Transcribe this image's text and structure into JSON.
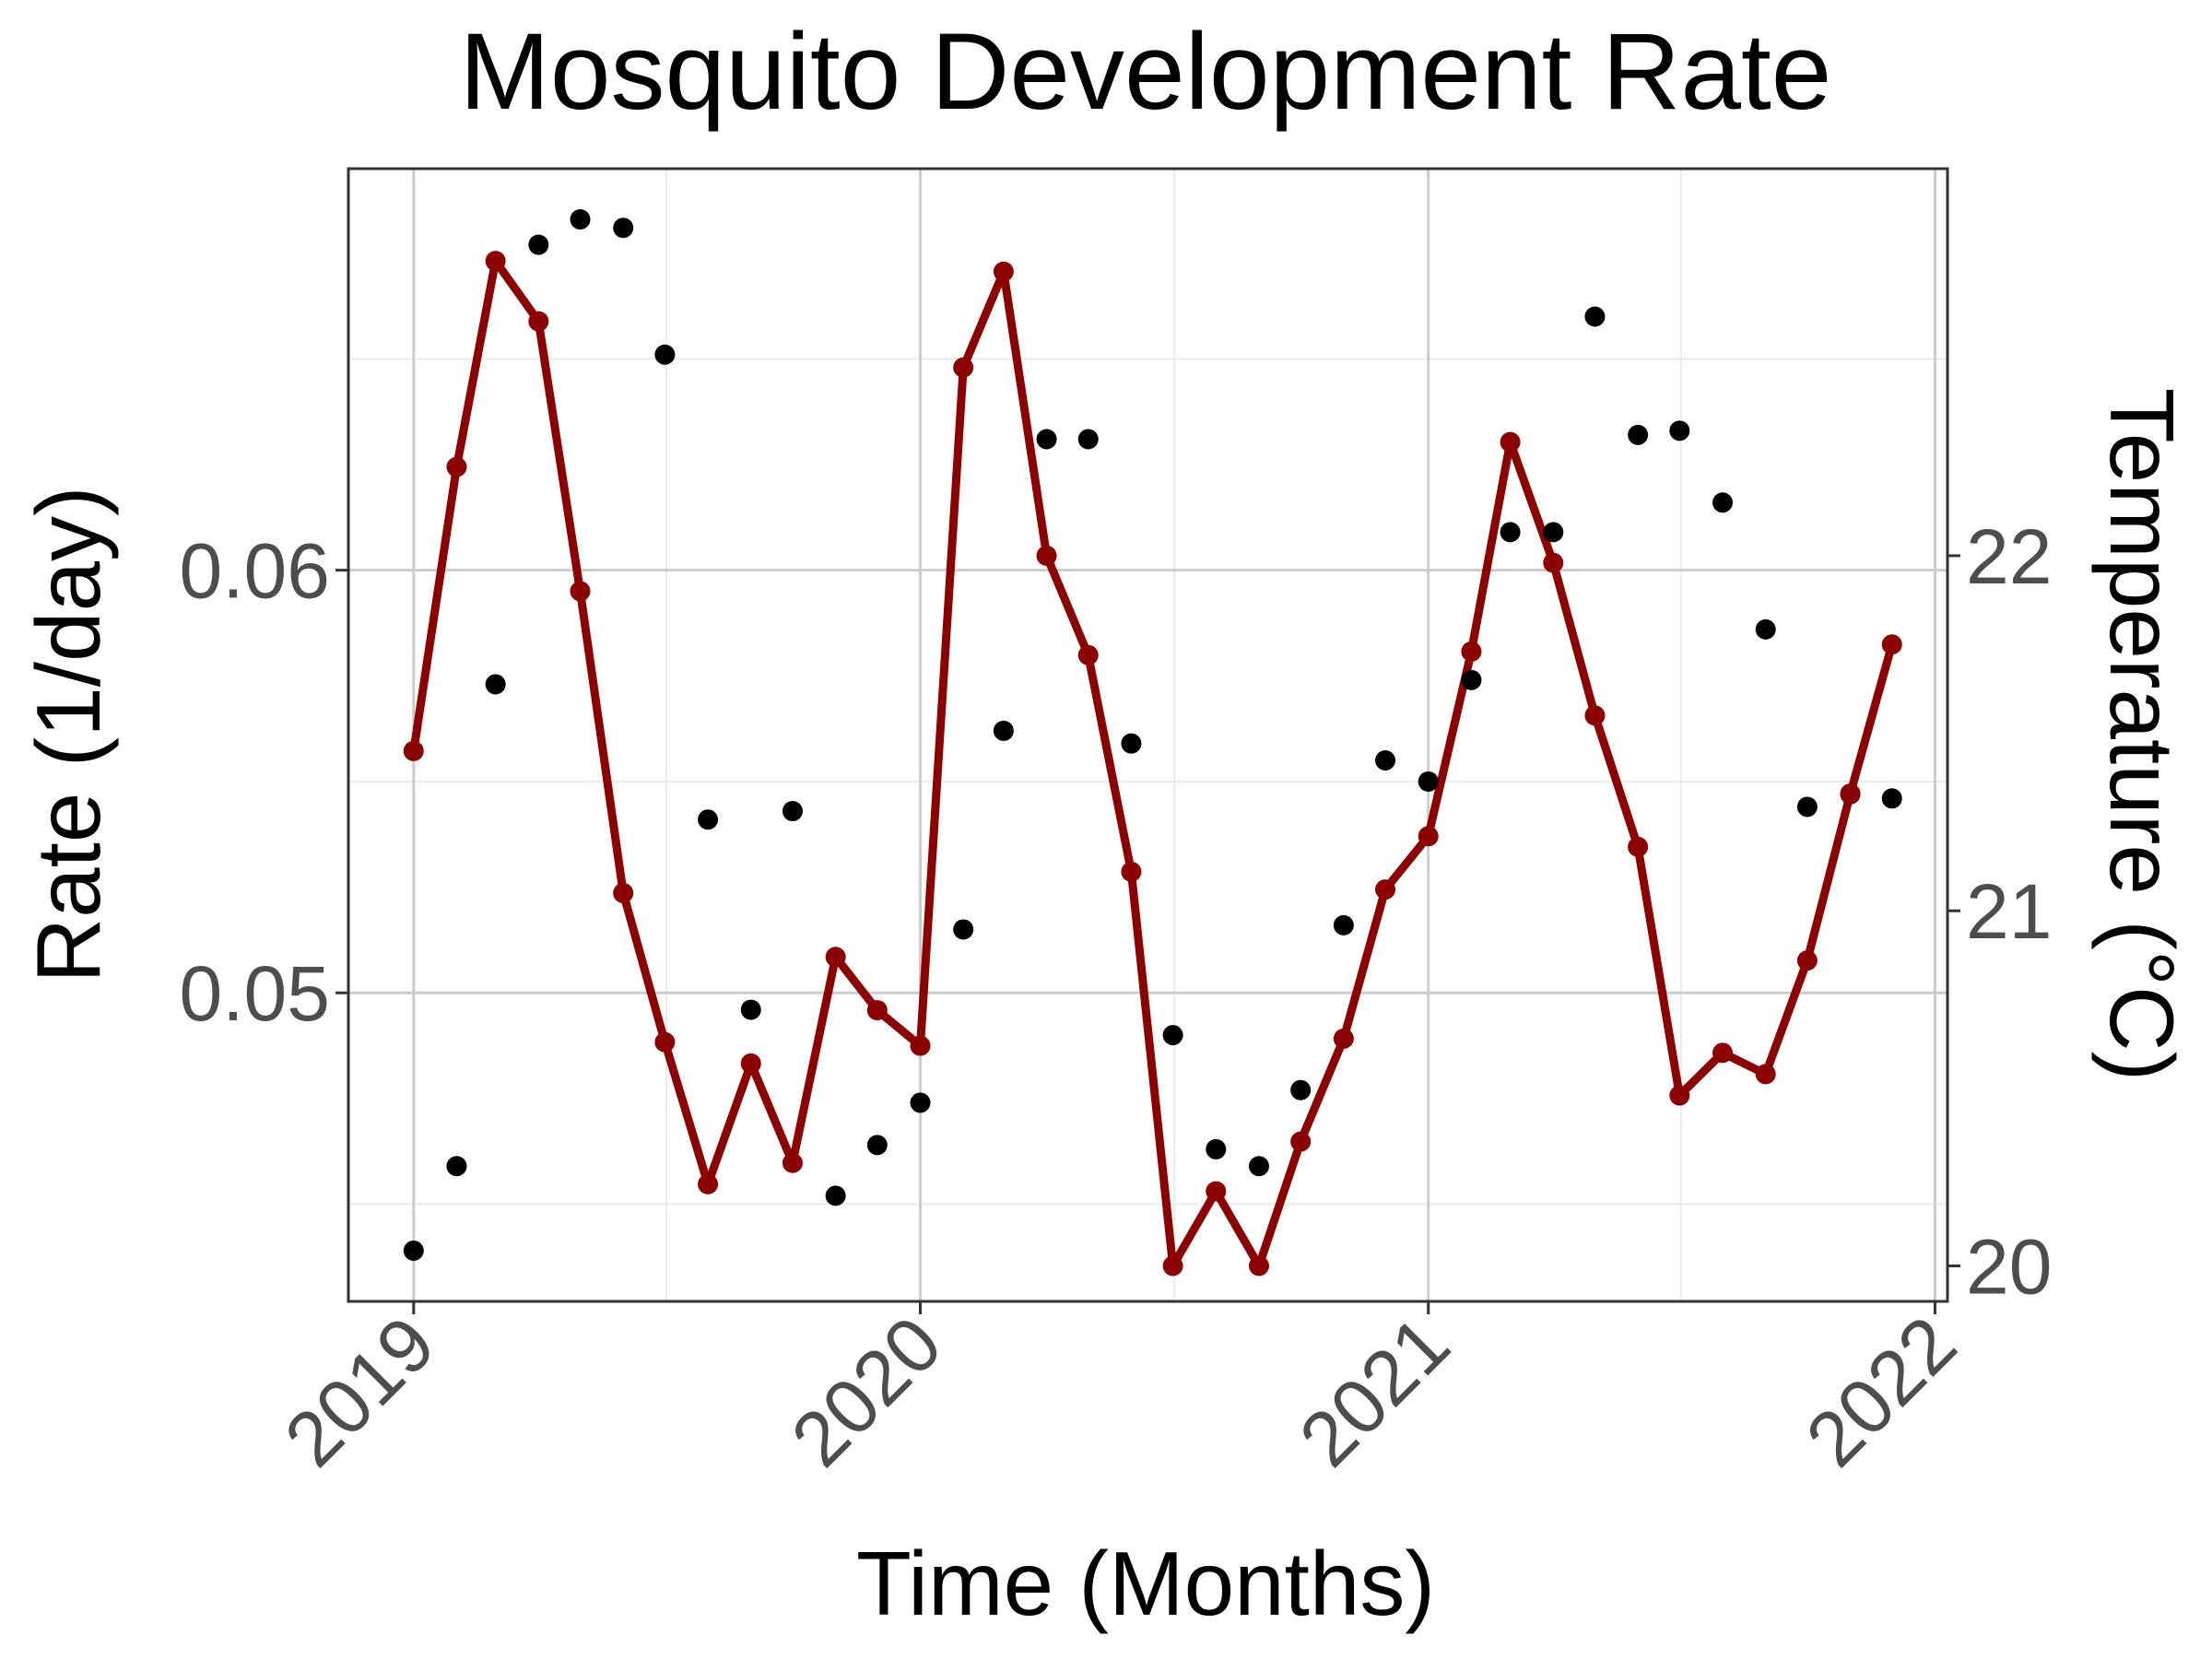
{
  "chart_data": {
    "type": "line",
    "title": "Mosquito Development Rate",
    "xlabel": "Time (Months)",
    "ylabel": "Rate (1/day)",
    "y2label": "Temperature (°C)",
    "x_ticks": [
      "2019",
      "2020",
      "2021",
      "2022"
    ],
    "y_ticks": [
      "0.05",
      "0.06"
    ],
    "y2_ticks": [
      "20",
      "21",
      "22"
    ],
    "xlim": [
      "2018-11-15",
      "2022-01-10"
    ],
    "ylim": [
      0.0427,
      0.0695
    ],
    "y2lim": [
      19.9,
      23.09
    ],
    "grid": true,
    "colors": {
      "rate": "#000000",
      "temperature": "#8b0000",
      "grid_major": "#cccccc",
      "grid_minor": "#ebebeb",
      "frame": "#333333",
      "tick_text": "#4d4d4d"
    },
    "x": [
      "2019-01",
      "2019-02",
      "2019-03",
      "2019-04",
      "2019-05",
      "2019-06",
      "2019-07",
      "2019-08",
      "2019-09",
      "2019-10",
      "2019-11",
      "2019-12",
      "2020-01",
      "2020-02",
      "2020-03",
      "2020-04",
      "2020-05",
      "2020-06",
      "2020-07",
      "2020-08",
      "2020-09",
      "2020-10",
      "2020-11",
      "2020-12",
      "2021-01",
      "2021-02",
      "2021-03",
      "2021-04",
      "2021-05",
      "2021-06",
      "2021-07",
      "2021-08",
      "2021-09",
      "2021-10",
      "2021-11",
      "2021-12"
    ],
    "series": [
      {
        "name": "Rate",
        "axis": "left",
        "style": "points",
        "values": [
          0.0439,
          0.0459,
          0.0573,
          0.0677,
          0.0683,
          0.0681,
          0.0651,
          0.0541,
          0.0496,
          0.0543,
          0.0452,
          0.0464,
          0.0474,
          0.0515,
          0.0562,
          0.0631,
          0.0631,
          0.0559,
          0.049,
          0.0463,
          0.0459,
          0.0477,
          0.0516,
          0.0555,
          0.055,
          0.0574,
          0.0609,
          0.0609,
          0.066,
          0.0632,
          0.0633,
          0.0616,
          0.0586,
          0.0544,
          0.0547,
          0.0546
        ]
      },
      {
        "name": "Temperature",
        "axis": "right",
        "style": "line+points",
        "values": [
          21.45,
          22.25,
          22.83,
          22.66,
          21.9,
          21.05,
          20.63,
          20.23,
          20.57,
          20.29,
          20.87,
          20.72,
          20.62,
          22.53,
          22.8,
          22.0,
          21.72,
          21.11,
          20.0,
          20.21,
          20.0,
          20.35,
          20.64,
          21.06,
          21.21,
          21.73,
          22.32,
          21.98,
          21.55,
          21.18,
          20.48,
          20.6,
          20.54,
          20.86,
          21.33,
          21.75
        ]
      }
    ]
  }
}
